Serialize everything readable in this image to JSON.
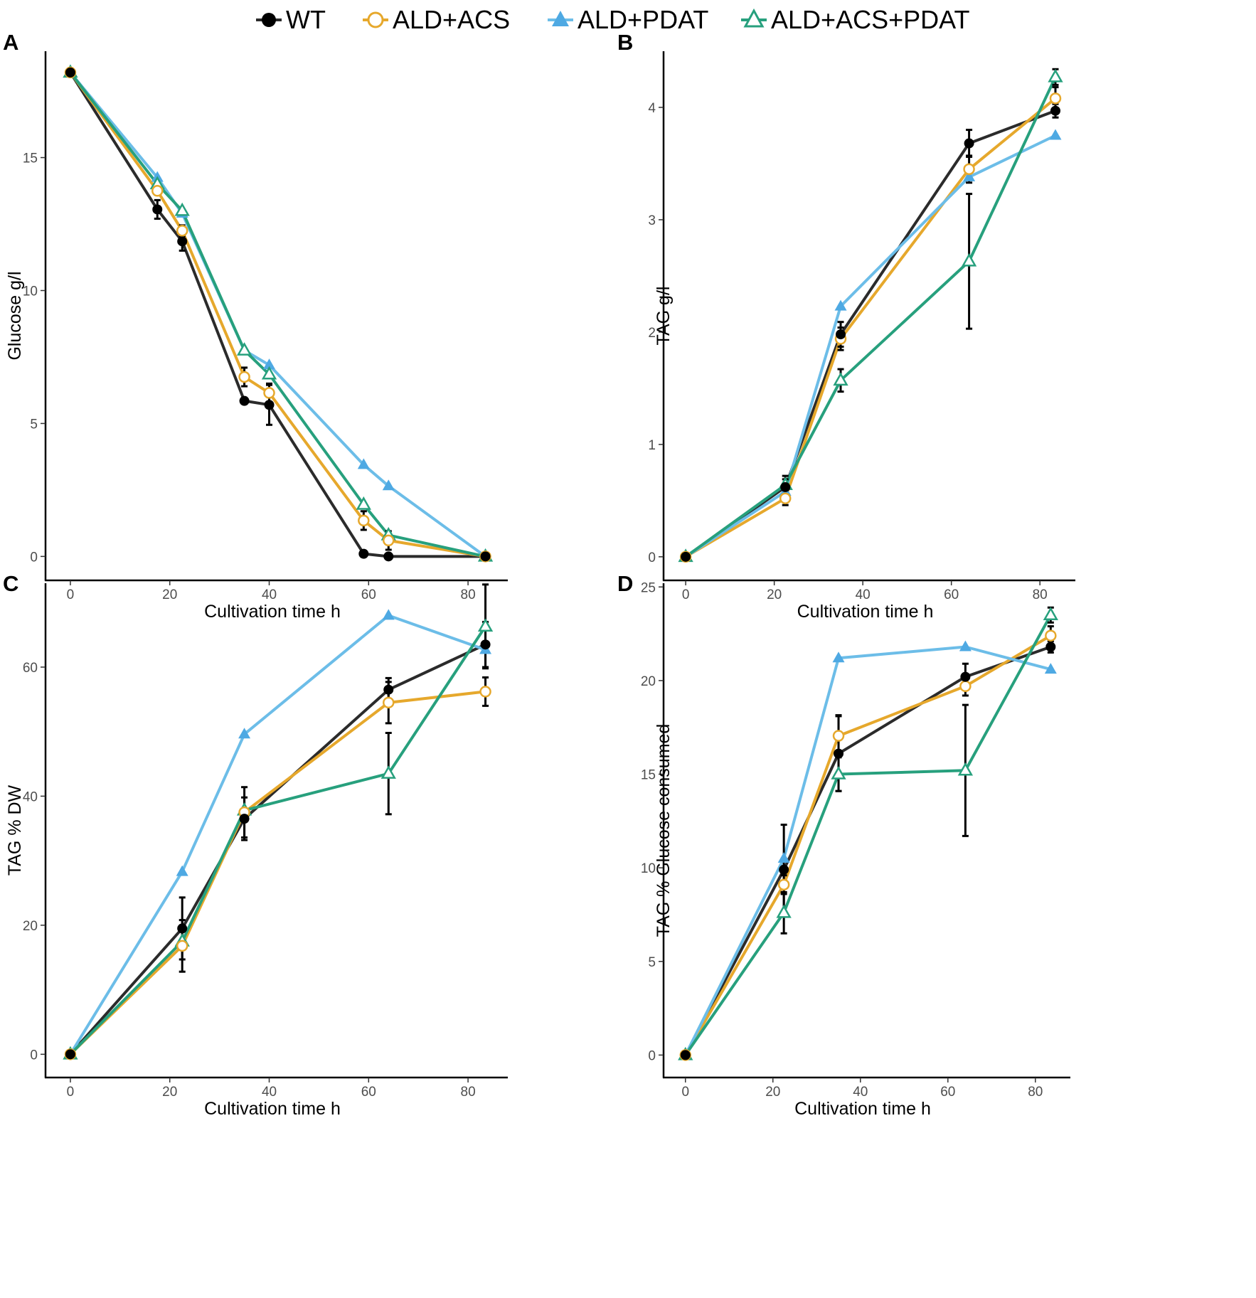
{
  "legend": {
    "items": [
      {
        "name": "WT",
        "color": "#2b2b2b",
        "marker": "filled-circle"
      },
      {
        "name": "ALD+ACS",
        "color": "#e6a82c",
        "marker": "open-circle"
      },
      {
        "name": "ALD+PDAT",
        "color": "#6cbde8",
        "marker": "filled-triangle"
      },
      {
        "name": "ALD+ACS+PDAT",
        "color": "#27a07d",
        "marker": "open-triangle"
      }
    ]
  },
  "chart_data": [
    {
      "panel": "A",
      "type": "line",
      "xlabel": "Cultivation time h",
      "ylabel": "Glucose g/l",
      "xlim": [
        -5,
        88
      ],
      "ylim": [
        -0.9,
        19
      ],
      "xticks": [
        0,
        20,
        40,
        60,
        80
      ],
      "yticks": [
        0,
        5,
        10,
        15
      ],
      "series": [
        {
          "name": "WT",
          "x": [
            0,
            17.5,
            22.5,
            35,
            40,
            59,
            64,
            83.5
          ],
          "y": [
            18.2,
            13.05,
            11.85,
            5.85,
            5.7,
            0.1,
            0.0,
            0.0
          ],
          "err": [
            0,
            0.35,
            0.35,
            0.1,
            0.75,
            0,
            0,
            0
          ]
        },
        {
          "name": "ALD+ACS",
          "x": [
            0,
            17.5,
            22.5,
            35,
            40,
            59,
            64,
            83.5
          ],
          "y": [
            18.2,
            13.75,
            12.25,
            6.75,
            6.15,
            1.35,
            0.6,
            0.0
          ],
          "err": [
            0,
            0.15,
            0.2,
            0.35,
            0.35,
            0.35,
            0.35,
            0
          ]
        },
        {
          "name": "ALD+PDAT",
          "x": [
            0,
            17.5,
            22.5,
            35,
            40,
            59,
            64,
            83.5
          ],
          "y": [
            18.2,
            14.25,
            12.9,
            7.75,
            7.2,
            3.45,
            2.65,
            0.0
          ],
          "err": [
            0,
            0,
            0,
            0,
            0,
            0,
            0,
            0
          ]
        },
        {
          "name": "ALD+ACS+PDAT",
          "x": [
            0,
            17.5,
            22.5,
            35,
            40,
            59,
            64,
            83.5
          ],
          "y": [
            18.2,
            14.0,
            13.0,
            7.75,
            6.85,
            1.95,
            0.8,
            0.0
          ],
          "err": [
            0,
            0,
            0,
            0,
            0,
            0,
            0,
            0
          ]
        }
      ]
    },
    {
      "panel": "B",
      "type": "line",
      "xlabel": "Cultivation time h",
      "ylabel": "TAG g/l",
      "xlim": [
        -5,
        88
      ],
      "ylim": [
        -0.21,
        4.5
      ],
      "xticks": [
        0,
        20,
        40,
        60,
        80
      ],
      "yticks": [
        0,
        1,
        2,
        3,
        4
      ],
      "series": [
        {
          "name": "WT",
          "x": [
            0,
            22.5,
            35,
            64,
            83.5
          ],
          "y": [
            0.0,
            0.62,
            1.98,
            3.68,
            3.97
          ],
          "err": [
            0,
            0.1,
            0.11,
            0.12,
            0.06
          ]
        },
        {
          "name": "ALD+ACS",
          "x": [
            0,
            22.5,
            35,
            64,
            83.5
          ],
          "y": [
            0.0,
            0.52,
            1.94,
            3.45,
            4.08
          ],
          "err": [
            0,
            0.06,
            0.1,
            0.12,
            0.1
          ]
        },
        {
          "name": "ALD+PDAT",
          "x": [
            0,
            22.5,
            35,
            64,
            83.5
          ],
          "y": [
            0.0,
            0.58,
            2.23,
            3.38,
            3.75
          ],
          "err": [
            0,
            0,
            0,
            0,
            0
          ]
        },
        {
          "name": "ALD+ACS+PDAT",
          "x": [
            0,
            22.5,
            35,
            64,
            83.5
          ],
          "y": [
            0.0,
            0.64,
            1.57,
            2.63,
            4.27
          ],
          "err": [
            0,
            0.05,
            0.1,
            0.6,
            0.07
          ]
        }
      ]
    },
    {
      "panel": "C",
      "type": "line",
      "xlabel": "Cultivation time h",
      "ylabel": "TAG % DW",
      "xlim": [
        -5,
        88
      ],
      "ylim": [
        -3.6,
        73
      ],
      "xticks": [
        0,
        20,
        40,
        60,
        80
      ],
      "yticks": [
        0,
        20,
        40,
        60
      ],
      "series": [
        {
          "name": "WT",
          "x": [
            0,
            22.5,
            35,
            64,
            83.5
          ],
          "y": [
            0.0,
            19.5,
            36.5,
            56.5,
            63.5
          ],
          "err": [
            0,
            4.8,
            3.3,
            1.8,
            3.5
          ]
        },
        {
          "name": "ALD+ACS",
          "x": [
            0,
            22.5,
            35,
            64,
            83.5
          ],
          "y": [
            0.0,
            16.8,
            37.5,
            54.5,
            56.2
          ],
          "err": [
            0,
            4.0,
            3.9,
            3.2,
            2.2
          ]
        },
        {
          "name": "ALD+PDAT",
          "x": [
            0,
            22.5,
            35,
            64,
            83.5
          ],
          "y": [
            0.0,
            28.3,
            49.6,
            68.0,
            62.7
          ],
          "err": [
            0,
            0,
            0,
            0,
            0
          ]
        },
        {
          "name": "ALD+ACS+PDAT",
          "x": [
            0,
            22.5,
            35,
            64,
            83.5
          ],
          "y": [
            0.0,
            17.5,
            37.8,
            43.5,
            66.3
          ],
          "err": [
            0,
            0,
            0,
            6.3,
            6.5
          ]
        }
      ]
    },
    {
      "panel": "D",
      "type": "line",
      "xlabel": "Cultivation time h",
      "ylabel": "TAG % Glucose consumed",
      "xlim": [
        -5,
        88
      ],
      "ylim": [
        -1.2,
        25.2
      ],
      "xticks": [
        0,
        20,
        40,
        60,
        80
      ],
      "yticks": [
        0,
        5,
        10,
        15,
        20,
        25
      ],
      "series": [
        {
          "name": "WT",
          "x": [
            0,
            22.5,
            35,
            64,
            83.5
          ],
          "y": [
            0.0,
            9.9,
            16.1,
            20.2,
            21.8
          ],
          "err": [
            0,
            2.4,
            2.0,
            0.7,
            0.3
          ]
        },
        {
          "name": "ALD+ACS",
          "x": [
            0,
            22.5,
            35,
            64,
            83.5
          ],
          "y": [
            0.0,
            9.1,
            17.05,
            19.7,
            22.4
          ],
          "err": [
            0,
            0.5,
            1.1,
            0.5,
            0.5
          ]
        },
        {
          "name": "ALD+PDAT",
          "x": [
            0,
            22.5,
            35,
            64,
            83.5
          ],
          "y": [
            0.0,
            10.5,
            21.2,
            21.8,
            20.6
          ],
          "err": [
            0,
            0,
            0,
            0,
            0
          ]
        },
        {
          "name": "ALD+ACS+PDAT",
          "x": [
            0,
            22.5,
            35,
            64,
            83.5
          ],
          "y": [
            0.0,
            7.6,
            15.0,
            15.2,
            23.5
          ],
          "err": [
            0,
            1.1,
            0.9,
            3.5,
            0.4
          ]
        }
      ]
    }
  ]
}
